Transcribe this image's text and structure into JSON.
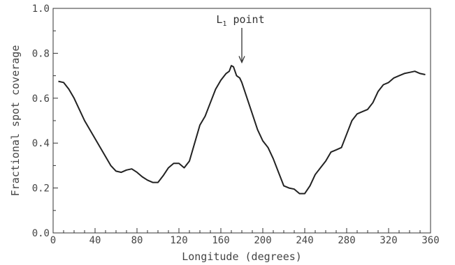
{
  "chart_data": {
    "type": "line",
    "title": "",
    "xlabel": "Longitude (degrees)",
    "ylabel": "Fractional spot coverage",
    "xlim": [
      0,
      360
    ],
    "ylim": [
      0.0,
      1.0
    ],
    "xticks": [
      0,
      40,
      80,
      120,
      160,
      200,
      240,
      280,
      320,
      360
    ],
    "xtick_labels": [
      "0",
      "40",
      "80",
      "120",
      "160",
      "200",
      "240",
      "280",
      "320",
      "360"
    ],
    "yticks": [
      0.0,
      0.2,
      0.4,
      0.6,
      0.8,
      1.0
    ],
    "ytick_labels": [
      "0.0",
      "0.2",
      "0.4",
      "0.6",
      "0.8",
      "1.0"
    ],
    "grid": false,
    "line_color": "#222222",
    "annotation": {
      "text_main": "L",
      "text_sub": "1",
      "text_rest": " point",
      "x": 180,
      "y": 0.75
    },
    "series": [
      {
        "x": [
          5,
          10,
          15,
          20,
          25,
          30,
          35,
          40,
          45,
          50,
          55,
          60,
          65,
          70,
          75,
          80,
          85,
          90,
          95,
          100,
          105,
          110,
          115,
          120,
          125,
          130,
          135,
          140,
          145,
          150,
          155,
          160,
          165,
          168,
          170,
          172,
          175,
          178,
          180,
          185,
          190,
          195,
          200,
          205,
          210,
          215,
          220,
          225,
          230,
          235,
          240,
          245,
          250,
          255,
          260,
          265,
          270,
          275,
          280,
          285,
          290,
          295,
          300,
          305,
          310,
          315,
          320,
          325,
          330,
          335,
          340,
          345,
          350,
          355
        ],
        "y": [
          0.675,
          0.67,
          0.64,
          0.6,
          0.55,
          0.5,
          0.46,
          0.42,
          0.38,
          0.34,
          0.3,
          0.275,
          0.27,
          0.28,
          0.285,
          0.27,
          0.25,
          0.235,
          0.225,
          0.225,
          0.255,
          0.29,
          0.31,
          0.31,
          0.29,
          0.32,
          0.4,
          0.48,
          0.52,
          0.58,
          0.64,
          0.68,
          0.71,
          0.72,
          0.745,
          0.74,
          0.7,
          0.69,
          0.67,
          0.6,
          0.53,
          0.46,
          0.41,
          0.38,
          0.33,
          0.27,
          0.21,
          0.2,
          0.195,
          0.175,
          0.175,
          0.21,
          0.26,
          0.29,
          0.32,
          0.36,
          0.37,
          0.38,
          0.44,
          0.5,
          0.53,
          0.54,
          0.55,
          0.58,
          0.63,
          0.66,
          0.67,
          0.69,
          0.7,
          0.71,
          0.715,
          0.72,
          0.71,
          0.705
        ]
      }
    ]
  }
}
